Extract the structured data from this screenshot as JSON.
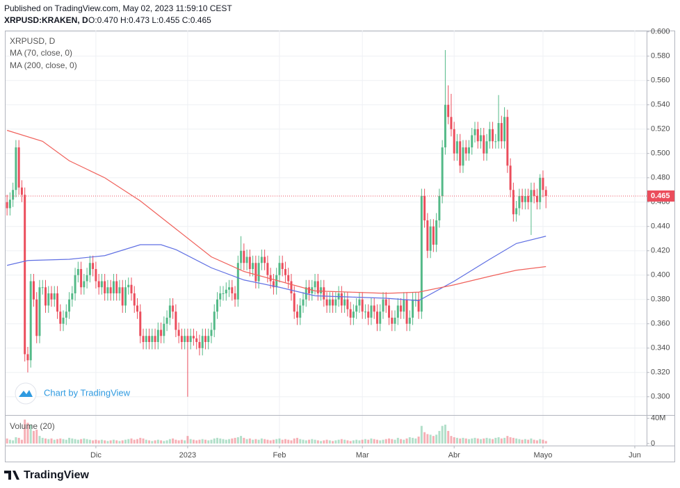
{
  "header": {
    "published": "Published on TradingView.com, May 02, 2023 11:59:10 CEST",
    "symbol": "XRPUSD:KRAKEN, D",
    "ohlc": "O:0.470 H:0.473 L:0.455 C:0.465"
  },
  "watermark": "Chart by TradingView",
  "footer": "TradingView",
  "chart_data": {
    "type": "candlestick",
    "title": "XRPUSD, D",
    "up_color": "#53b987",
    "down_color": "#eb4d5c",
    "grid": true,
    "x": [
      0,
      1,
      2,
      3,
      4,
      5,
      6,
      7,
      8,
      9,
      10,
      11,
      12,
      13,
      14,
      15,
      16,
      17,
      18,
      19,
      20,
      21,
      22,
      23,
      24,
      25,
      26,
      27,
      28,
      29,
      30,
      31,
      32,
      33,
      34,
      35,
      36,
      37,
      38,
      39,
      40,
      41,
      42,
      43,
      44,
      45,
      46,
      47,
      48,
      49,
      50,
      51,
      52,
      53,
      54,
      55,
      56,
      57,
      58,
      59,
      60,
      61,
      62,
      63,
      64,
      65,
      66,
      67,
      68,
      69,
      70,
      71,
      72,
      73,
      74,
      75,
      76,
      77,
      78,
      79,
      80,
      81,
      82,
      83,
      84,
      85,
      86,
      87,
      88,
      89,
      90,
      91,
      92,
      93,
      94,
      95,
      96,
      97,
      98,
      99,
      100,
      101,
      102,
      103,
      104,
      105,
      106,
      107,
      108,
      109,
      110,
      111,
      112,
      113,
      114,
      115,
      116,
      117,
      118,
      119,
      120,
      121,
      122,
      123,
      124,
      125,
      126,
      127,
      128,
      129,
      130,
      131,
      132,
      133,
      134,
      135,
      136,
      137,
      138,
      139,
      140,
      141,
      142,
      143,
      144,
      145,
      146,
      147,
      148,
      149,
      150,
      151,
      152,
      153,
      154,
      155,
      156,
      157,
      158,
      159,
      160,
      161,
      162,
      163,
      164,
      165,
      166,
      167,
      168,
      169,
      170,
      171,
      172,
      173,
      174,
      175,
      176,
      177,
      178,
      179,
      180,
      181,
      182
    ],
    "open": [
      0.46,
      0.455,
      0.462,
      0.47,
      0.505,
      0.472,
      0.466,
      0.335,
      0.33,
      0.395,
      0.38,
      0.35,
      0.39,
      0.39,
      0.375,
      0.385,
      0.38,
      0.385,
      0.37,
      0.36,
      0.365,
      0.37,
      0.38,
      0.385,
      0.4,
      0.405,
      0.39,
      0.395,
      0.4,
      0.41,
      0.405,
      0.395,
      0.39,
      0.395,
      0.385,
      0.39,
      0.385,
      0.395,
      0.385,
      0.39,
      0.375,
      0.39,
      0.392,
      0.385,
      0.375,
      0.37,
      0.35,
      0.345,
      0.35,
      0.345,
      0.35,
      0.345,
      0.355,
      0.35,
      0.36,
      0.365,
      0.375,
      0.37,
      0.355,
      0.35,
      0.345,
      0.35,
      0.345,
      0.35,
      0.348,
      0.345,
      0.34,
      0.35,
      0.345,
      0.35,
      0.355,
      0.37,
      0.38,
      0.385,
      0.385,
      0.388,
      0.39,
      0.385,
      0.38,
      0.41,
      0.42,
      0.41,
      0.415,
      0.405,
      0.41,
      0.395,
      0.41,
      0.415,
      0.41,
      0.4,
      0.395,
      0.39,
      0.4,
      0.41,
      0.405,
      0.4,
      0.395,
      0.385,
      0.37,
      0.365,
      0.375,
      0.38,
      0.39,
      0.385,
      0.39,
      0.395,
      0.385,
      0.39,
      0.38,
      0.375,
      0.38,
      0.375,
      0.38,
      0.385,
      0.375,
      0.38,
      0.372,
      0.365,
      0.37,
      0.375,
      0.38,
      0.37,
      0.37,
      0.365,
      0.375,
      0.37,
      0.36,
      0.37,
      0.38,
      0.375,
      0.365,
      0.36,
      0.365,
      0.375,
      0.37,
      0.38,
      0.36,
      0.365,
      0.38,
      0.38,
      0.37,
      0.465,
      0.445,
      0.42,
      0.44,
      0.425,
      0.445,
      0.465,
      0.505,
      0.54,
      0.53,
      0.52,
      0.5,
      0.51,
      0.49,
      0.505,
      0.5,
      0.505,
      0.515,
      0.52,
      0.51,
      0.515,
      0.5,
      0.51,
      0.52,
      0.51,
      0.51,
      0.525,
      0.51,
      0.53,
      0.49,
      0.47,
      0.45,
      0.455,
      0.465,
      0.46,
      0.465,
      0.46,
      0.47,
      0.465,
      0.46,
      0.48,
      0.47
    ],
    "high": [
      0.466,
      0.468,
      0.476,
      0.511,
      0.511,
      0.478,
      0.472,
      0.341,
      0.401,
      0.401,
      0.386,
      0.396,
      0.396,
      0.396,
      0.391,
      0.391,
      0.391,
      0.391,
      0.376,
      0.371,
      0.376,
      0.386,
      0.391,
      0.406,
      0.411,
      0.411,
      0.401,
      0.406,
      0.416,
      0.416,
      0.411,
      0.401,
      0.401,
      0.401,
      0.396,
      0.396,
      0.401,
      0.401,
      0.396,
      0.396,
      0.396,
      0.398,
      0.398,
      0.391,
      0.381,
      0.376,
      0.356,
      0.356,
      0.356,
      0.356,
      0.356,
      0.361,
      0.361,
      0.366,
      0.371,
      0.381,
      0.381,
      0.376,
      0.361,
      0.356,
      0.356,
      0.356,
      0.356,
      0.356,
      0.354,
      0.351,
      0.356,
      0.356,
      0.356,
      0.361,
      0.376,
      0.386,
      0.391,
      0.391,
      0.394,
      0.396,
      0.396,
      0.391,
      0.416,
      0.432,
      0.426,
      0.421,
      0.421,
      0.416,
      0.416,
      0.416,
      0.421,
      0.421,
      0.416,
      0.406,
      0.401,
      0.406,
      0.416,
      0.416,
      0.411,
      0.406,
      0.401,
      0.391,
      0.376,
      0.381,
      0.386,
      0.396,
      0.396,
      0.396,
      0.401,
      0.401,
      0.396,
      0.396,
      0.386,
      0.386,
      0.386,
      0.386,
      0.391,
      0.391,
      0.386,
      0.386,
      0.378,
      0.376,
      0.381,
      0.386,
      0.386,
      0.376,
      0.376,
      0.381,
      0.381,
      0.376,
      0.376,
      0.386,
      0.386,
      0.381,
      0.371,
      0.371,
      0.381,
      0.381,
      0.386,
      0.386,
      0.371,
      0.386,
      0.386,
      0.386,
      0.471,
      0.471,
      0.451,
      0.446,
      0.446,
      0.451,
      0.471,
      0.511,
      0.585,
      0.556,
      0.549,
      0.526,
      0.516,
      0.516,
      0.511,
      0.511,
      0.511,
      0.521,
      0.526,
      0.526,
      0.521,
      0.521,
      0.516,
      0.526,
      0.526,
      0.516,
      0.548,
      0.531,
      0.538,
      0.536,
      0.496,
      0.476,
      0.461,
      0.471,
      0.471,
      0.471,
      0.471,
      0.476,
      0.476,
      0.471,
      0.483,
      0.486,
      0.473
    ],
    "low": [
      0.449,
      0.449,
      0.456,
      0.464,
      0.466,
      0.46,
      0.329,
      0.32,
      0.324,
      0.374,
      0.344,
      0.344,
      0.384,
      0.369,
      0.369,
      0.374,
      0.374,
      0.364,
      0.354,
      0.354,
      0.359,
      0.364,
      0.374,
      0.379,
      0.394,
      0.384,
      0.384,
      0.389,
      0.394,
      0.399,
      0.389,
      0.384,
      0.384,
      0.379,
      0.379,
      0.379,
      0.379,
      0.379,
      0.379,
      0.369,
      0.369,
      0.384,
      0.379,
      0.369,
      0.364,
      0.344,
      0.339,
      0.339,
      0.339,
      0.339,
      0.339,
      0.339,
      0.344,
      0.344,
      0.354,
      0.359,
      0.364,
      0.349,
      0.344,
      0.339,
      0.339,
      0.3,
      0.339,
      0.342,
      0.339,
      0.334,
      0.334,
      0.339,
      0.339,
      0.344,
      0.349,
      0.364,
      0.374,
      0.379,
      0.379,
      0.382,
      0.379,
      0.374,
      0.374,
      0.404,
      0.404,
      0.404,
      0.399,
      0.399,
      0.389,
      0.389,
      0.404,
      0.404,
      0.394,
      0.389,
      0.384,
      0.384,
      0.394,
      0.399,
      0.394,
      0.389,
      0.379,
      0.364,
      0.359,
      0.359,
      0.369,
      0.374,
      0.379,
      0.379,
      0.384,
      0.379,
      0.379,
      0.374,
      0.369,
      0.369,
      0.369,
      0.369,
      0.374,
      0.369,
      0.369,
      0.366,
      0.359,
      0.359,
      0.364,
      0.369,
      0.364,
      0.364,
      0.359,
      0.359,
      0.364,
      0.354,
      0.354,
      0.364,
      0.369,
      0.359,
      0.354,
      0.354,
      0.359,
      0.364,
      0.364,
      0.354,
      0.354,
      0.359,
      0.374,
      0.364,
      0.364,
      0.439,
      0.414,
      0.414,
      0.419,
      0.419,
      0.439,
      0.459,
      0.499,
      0.524,
      0.514,
      0.494,
      0.494,
      0.484,
      0.484,
      0.494,
      0.494,
      0.499,
      0.509,
      0.504,
      0.504,
      0.494,
      0.494,
      0.504,
      0.504,
      0.504,
      0.504,
      0.504,
      0.504,
      0.484,
      0.464,
      0.444,
      0.444,
      0.449,
      0.454,
      0.454,
      0.454,
      0.433,
      0.459,
      0.454,
      0.454,
      0.464,
      0.455
    ],
    "close": [
      0.455,
      0.462,
      0.47,
      0.505,
      0.472,
      0.466,
      0.335,
      0.33,
      0.395,
      0.38,
      0.35,
      0.39,
      0.39,
      0.375,
      0.385,
      0.38,
      0.385,
      0.37,
      0.36,
      0.365,
      0.37,
      0.38,
      0.385,
      0.4,
      0.405,
      0.39,
      0.395,
      0.4,
      0.41,
      0.405,
      0.395,
      0.39,
      0.395,
      0.385,
      0.39,
      0.385,
      0.395,
      0.385,
      0.39,
      0.375,
      0.39,
      0.392,
      0.385,
      0.375,
      0.37,
      0.35,
      0.345,
      0.35,
      0.345,
      0.35,
      0.345,
      0.355,
      0.35,
      0.36,
      0.365,
      0.375,
      0.37,
      0.355,
      0.35,
      0.345,
      0.35,
      0.345,
      0.35,
      0.348,
      0.345,
      0.34,
      0.35,
      0.345,
      0.35,
      0.355,
      0.37,
      0.38,
      0.385,
      0.385,
      0.388,
      0.39,
      0.385,
      0.38,
      0.41,
      0.42,
      0.41,
      0.415,
      0.405,
      0.41,
      0.395,
      0.41,
      0.415,
      0.41,
      0.4,
      0.395,
      0.39,
      0.4,
      0.41,
      0.405,
      0.4,
      0.395,
      0.385,
      0.37,
      0.365,
      0.375,
      0.38,
      0.39,
      0.385,
      0.39,
      0.395,
      0.385,
      0.39,
      0.38,
      0.375,
      0.38,
      0.375,
      0.38,
      0.385,
      0.375,
      0.38,
      0.372,
      0.365,
      0.37,
      0.375,
      0.38,
      0.37,
      0.37,
      0.365,
      0.375,
      0.37,
      0.36,
      0.37,
      0.38,
      0.375,
      0.365,
      0.36,
      0.365,
      0.375,
      0.37,
      0.38,
      0.36,
      0.365,
      0.38,
      0.38,
      0.37,
      0.465,
      0.445,
      0.42,
      0.44,
      0.425,
      0.445,
      0.465,
      0.505,
      0.54,
      0.53,
      0.52,
      0.5,
      0.51,
      0.49,
      0.505,
      0.5,
      0.505,
      0.515,
      0.52,
      0.51,
      0.515,
      0.5,
      0.51,
      0.52,
      0.51,
      0.51,
      0.525,
      0.51,
      0.53,
      0.49,
      0.47,
      0.45,
      0.455,
      0.465,
      0.46,
      0.465,
      0.46,
      0.47,
      0.465,
      0.46,
      0.48,
      0.47,
      0.465
    ],
    "xlim": [
      -0.5,
      216
    ],
    "xticks": [
      {
        "value": 30,
        "label": "Dic"
      },
      {
        "value": 61,
        "label": "2023"
      },
      {
        "value": 92,
        "label": "Feb"
      },
      {
        "value": 120,
        "label": "Mar"
      },
      {
        "value": 151,
        "label": "Abr"
      },
      {
        "value": 181,
        "label": "Mayo"
      },
      {
        "value": 212,
        "label": "Jun"
      }
    ],
    "ylim": [
      0.285,
      0.601
    ],
    "yticks": [
      {
        "value": 0.3,
        "label": "0.300"
      },
      {
        "value": 0.32,
        "label": "0.320"
      },
      {
        "value": 0.34,
        "label": "0.340"
      },
      {
        "value": 0.36,
        "label": "0.360"
      },
      {
        "value": 0.38,
        "label": "0.380"
      },
      {
        "value": 0.4,
        "label": "0.400"
      },
      {
        "value": 0.42,
        "label": "0.420"
      },
      {
        "value": 0.44,
        "label": "0.440"
      },
      {
        "value": 0.46,
        "label": "0.460"
      },
      {
        "value": 0.48,
        "label": "0.480"
      },
      {
        "value": 0.5,
        "label": "0.500"
      },
      {
        "value": 0.52,
        "label": "0.520"
      },
      {
        "value": 0.54,
        "label": "0.540"
      },
      {
        "value": 0.56,
        "label": "0.560"
      },
      {
        "value": 0.58,
        "label": "0.580"
      },
      {
        "value": 0.6,
        "label": "0.600"
      }
    ],
    "series": [
      {
        "name": "MA (70, close, 0)",
        "color": "#5f6fe3",
        "x": [
          0,
          7,
          21,
          33,
          45,
          52,
          57,
          69,
          80,
          92,
          104,
          116,
          128,
          139,
          151,
          163,
          172,
          182
        ],
        "values": [
          0.408,
          0.412,
          0.413,
          0.416,
          0.425,
          0.425,
          0.421,
          0.406,
          0.396,
          0.39,
          0.383,
          0.382,
          0.381,
          0.379,
          0.395,
          0.413,
          0.426,
          0.432
        ]
      },
      {
        "name": "MA (200, close, 0)",
        "color": "#f0605a",
        "x": [
          0,
          12,
          21,
          33,
          45,
          57,
          69,
          80,
          92,
          104,
          116,
          128,
          139,
          151,
          163,
          172,
          182
        ],
        "values": [
          0.519,
          0.51,
          0.494,
          0.48,
          0.461,
          0.438,
          0.415,
          0.403,
          0.395,
          0.387,
          0.386,
          0.385,
          0.386,
          0.392,
          0.399,
          0.404,
          0.407
        ]
      }
    ],
    "volume": {
      "title": "Volume (20)",
      "ylim": [
        0,
        42000000
      ],
      "yticks": [
        0,
        {
          "value": 40000000,
          "label": "40M"
        }
      ],
      "values": [
        8000000.0,
        6000000.0,
        5000000.0,
        10000000.0,
        9000000.0,
        6000000.0,
        38000000.0,
        33000000.0,
        30000000.0,
        20000000.0,
        22000000.0,
        12000000.0,
        9000000.0,
        8000000.0,
        7000000.0,
        8000000.0,
        6000000.0,
        7000000.0,
        8000000.0,
        7000000.0,
        6000000.0,
        9000000.0,
        8000000.0,
        7000000.0,
        6000000.0,
        7000000.0,
        8000000.0,
        7000000.0,
        6000000.0,
        5000000.0,
        6000000.0,
        5000000.0,
        6000000.0,
        5000000.0,
        4000000.0,
        5000000.0,
        6000000.0,
        5000000.0,
        4000000.0,
        5000000.0,
        6000000.0,
        7000000.0,
        8000000.0,
        6000000.0,
        7000000.0,
        9000000.0,
        8000000.0,
        6000000.0,
        5000000.0,
        4000000.0,
        5000000.0,
        6000000.0,
        5000000.0,
        4000000.0,
        5000000.0,
        7000000.0,
        8000000.0,
        6000000.0,
        5000000.0,
        6000000.0,
        5000000.0,
        12000000.0,
        7000000.0,
        6000000.0,
        5000000.0,
        6000000.0,
        7000000.0,
        6000000.0,
        5000000.0,
        6000000.0,
        8000000.0,
        9000000.0,
        8000000.0,
        7000000.0,
        6000000.0,
        7000000.0,
        8000000.0,
        9000000.0,
        10000000.0,
        12000000.0,
        9000000.0,
        7000000.0,
        8000000.0,
        6000000.0,
        7000000.0,
        6000000.0,
        8000000.0,
        7000000.0,
        6000000.0,
        5000000.0,
        6000000.0,
        7000000.0,
        8000000.0,
        6000000.0,
        7000000.0,
        6000000.0,
        5000000.0,
        8000000.0,
        9000000.0,
        7000000.0,
        6000000.0,
        5000000.0,
        6000000.0,
        7000000.0,
        6000000.0,
        5000000.0,
        4000000.0,
        5000000.0,
        6000000.0,
        5000000.0,
        4000000.0,
        5000000.0,
        6000000.0,
        7000000.0,
        6000000.0,
        5000000.0,
        4000000.0,
        5000000.0,
        6000000.0,
        5000000.0,
        6000000.0,
        7000000.0,
        6000000.0,
        8000000.0,
        7000000.0,
        6000000.0,
        5000000.0,
        6000000.0,
        7000000.0,
        8000000.0,
        7000000.0,
        6000000.0,
        9000000.0,
        7000000.0,
        6000000.0,
        8000000.0,
        10000000.0,
        9000000.0,
        8000000.0,
        11000000.0,
        28000000.0,
        18000000.0,
        15000000.0,
        14000000.0,
        12000000.0,
        14000000.0,
        20000000.0,
        28000000.0,
        30000000.0,
        20000000.0,
        12000000.0,
        10000000.0,
        9000000.0,
        8000000.0,
        9000000.0,
        8000000.0,
        7000000.0,
        8000000.0,
        9000000.0,
        8000000.0,
        7000000.0,
        8000000.0,
        9000000.0,
        8000000.0,
        7000000.0,
        9000000.0,
        10000000.0,
        8000000.0,
        9000000.0,
        12000000.0,
        10000000.0,
        9000000.0,
        8000000.0,
        7000000.0,
        6000000.0,
        7000000.0,
        6000000.0,
        8000000.0,
        6000000.0,
        5000000.0,
        7000000.0,
        6000000.0,
        4000000.0
      ]
    }
  }
}
